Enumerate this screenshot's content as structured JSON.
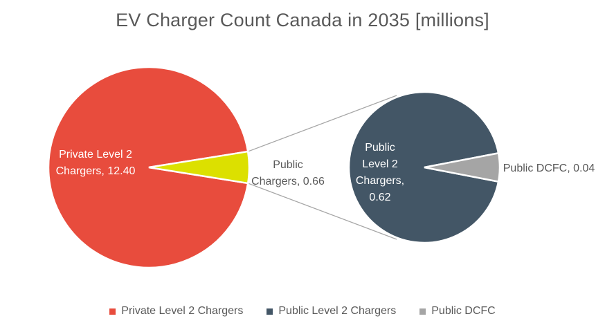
{
  "chart_data": {
    "type": "pie",
    "subtype": "pie-of-pie",
    "title": "EV Charger Count Canada in 2035 [millions]",
    "main_pie": {
      "slices": [
        {
          "name": "Private Level 2 Chargers",
          "value": 12.4,
          "label_lines": [
            "Private Level 2",
            "Chargers, 12.40"
          ],
          "color": "#E84C3D"
        },
        {
          "name": "Public Chargers",
          "value": 0.66,
          "label_lines": [
            "Public",
            "Chargers, 0.66"
          ],
          "color": "#DCE000"
        }
      ]
    },
    "secondary_pie": {
      "slices": [
        {
          "name": "Public Level 2 Chargers",
          "value": 0.62,
          "label_lines": [
            "Public",
            "Level 2",
            "Chargers,",
            "0.62"
          ],
          "color": "#435666"
        },
        {
          "name": "Public DCFC",
          "value": 0.04,
          "label_lines": [
            "Public DCFC, 0.04"
          ],
          "color": "#A5A5A5"
        }
      ]
    },
    "legend": [
      {
        "label": "Private Level 2 Chargers",
        "color": "#E84C3D"
      },
      {
        "label": "Public Level 2 Chargers",
        "color": "#435666"
      },
      {
        "label": "Public DCFC",
        "color": "#A5A5A5"
      }
    ],
    "legend_position": "bottom"
  }
}
